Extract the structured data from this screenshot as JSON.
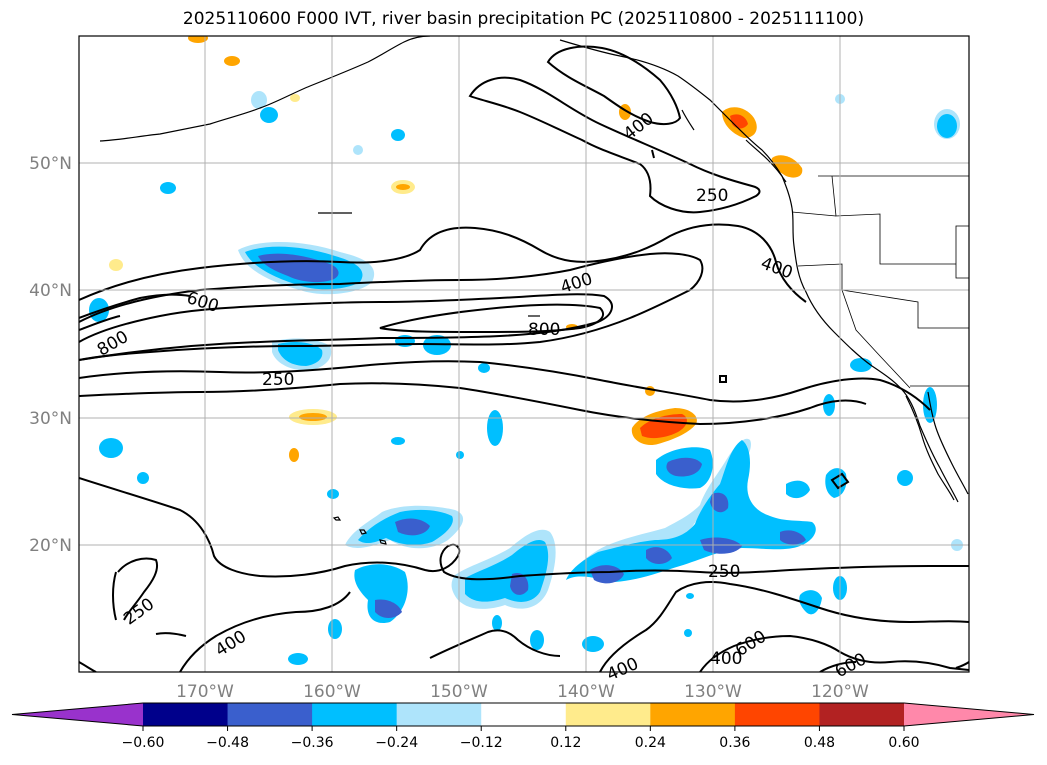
{
  "title": "2025110600 F000 IVT, river basin precipitation PC (2025110800 - 2025111100)",
  "lat_labels": [
    "50°N",
    "40°N",
    "30°N",
    "20°N"
  ],
  "lon_labels": [
    "170°W",
    "160°W",
    "150°W",
    "140°W",
    "130°W",
    "120°W"
  ],
  "contour_labels": [
    "400",
    "250",
    "400",
    "600",
    "400",
    "800",
    "800",
    "250",
    "250",
    "400",
    "250",
    "400",
    "600",
    "400",
    "600"
  ],
  "colorbar": {
    "ticks": [
      "−0.60",
      "−0.48",
      "−0.36",
      "−0.24",
      "−0.12",
      "0.12",
      "0.24",
      "0.36",
      "0.48",
      "0.60"
    ],
    "colors": [
      "#9932cc",
      "#00008b",
      "#3a5fcd",
      "#00bfff",
      "#aee4fb",
      "#ffffff",
      "#ffeb8c",
      "#ffa500",
      "#ff4500",
      "#b22222",
      "#ff88aa"
    ]
  }
}
